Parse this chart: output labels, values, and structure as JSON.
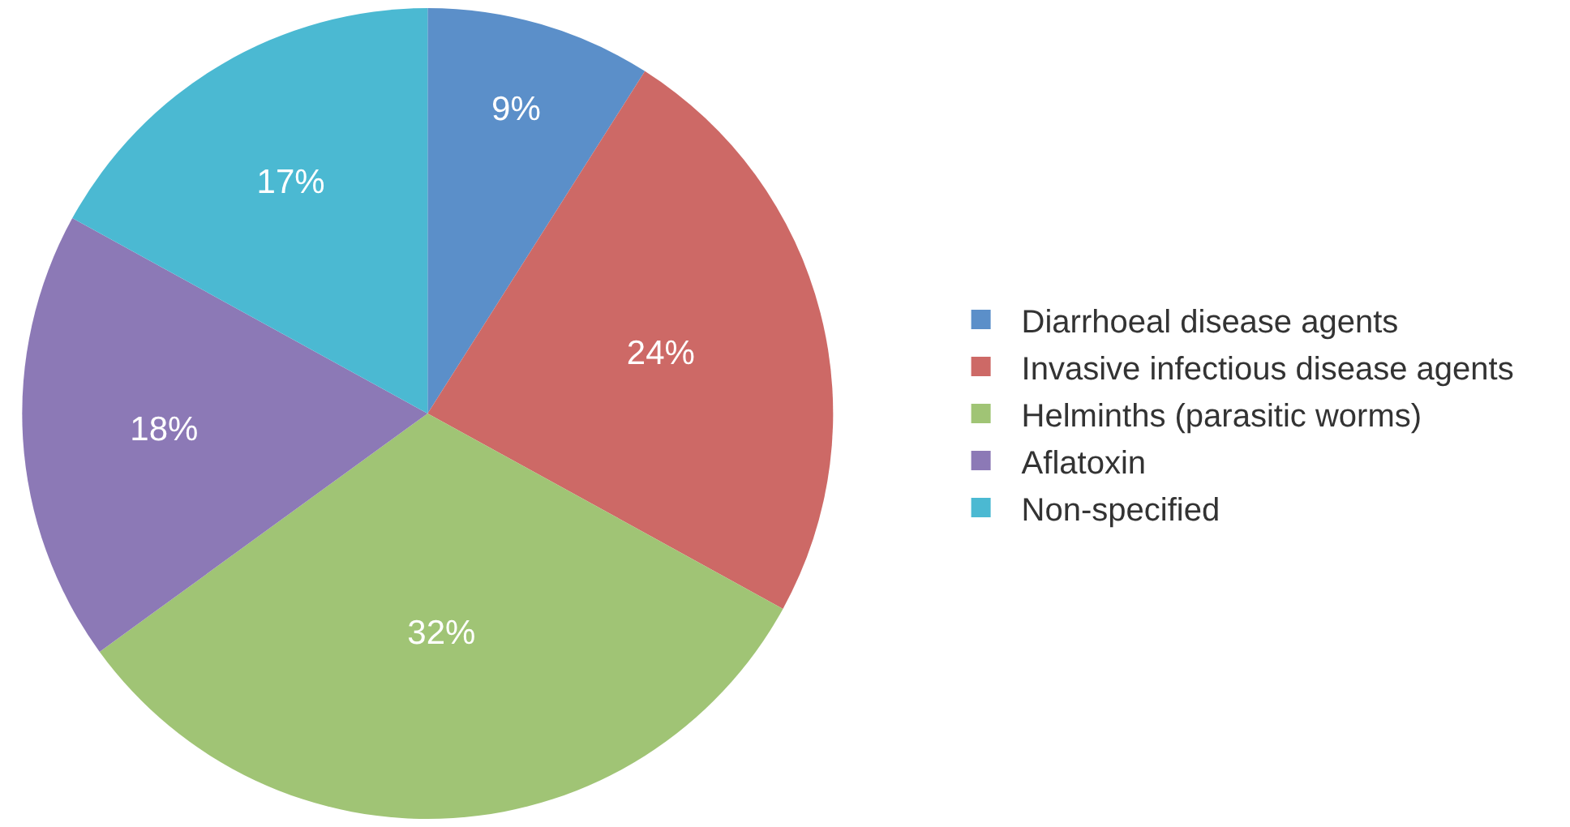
{
  "chart_data": {
    "type": "pie",
    "categories": [
      "Diarrhoeal disease agents",
      "Invasive infectious disease agents",
      "Helminths (parasitic worms)",
      "Aflatoxin",
      "Non-specified"
    ],
    "values": [
      9,
      24,
      32,
      18,
      17
    ],
    "colors": [
      "#5b8fc9",
      "#cd6966",
      "#a0c475",
      "#8c79b6",
      "#4bb9d2"
    ],
    "value_labels": [
      "9%",
      "24%",
      "32%",
      "18%",
      "17%"
    ],
    "legend": "right"
  }
}
